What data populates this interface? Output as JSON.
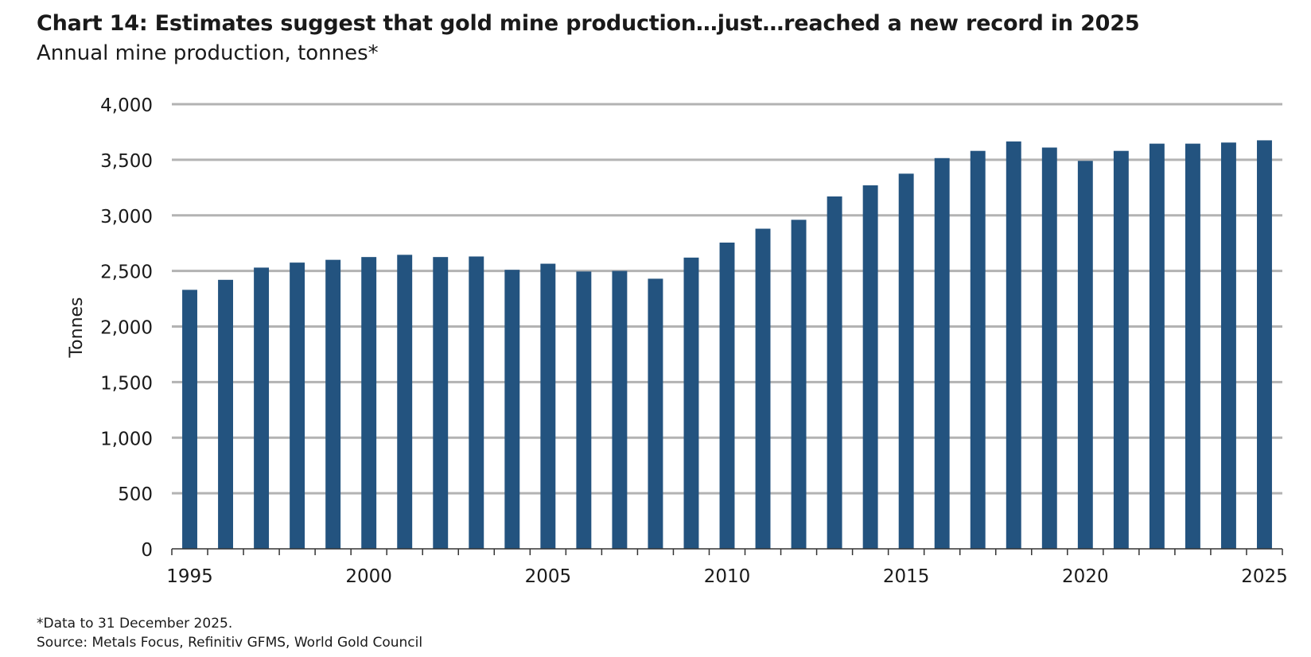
{
  "chart_data": {
    "type": "bar",
    "title": "Chart 14: Estimates suggest that gold mine production…just…reached a new record in 2025",
    "subtitle": "Annual mine production, tonnes*",
    "ylabel": "Tonnes",
    "xlabel": "",
    "ylim": [
      0,
      4000
    ],
    "yticks": [
      0,
      500,
      1000,
      1500,
      2000,
      2500,
      3000,
      3500,
      4000
    ],
    "ytick_labels": [
      "0",
      "500",
      "1,000",
      "1,500",
      "2,000",
      "2,500",
      "3,000",
      "3,500",
      "4,000"
    ],
    "xtick_labels": [
      "1995",
      "2000",
      "2005",
      "2010",
      "2015",
      "2020",
      "2025"
    ],
    "grid": true,
    "legend": "none",
    "bar_color": "#23537f",
    "grid_color": "#b3b3b3",
    "categories": [
      "1995",
      "1996",
      "1997",
      "1998",
      "1999",
      "2000",
      "2001",
      "2002",
      "2003",
      "2004",
      "2005",
      "2006",
      "2007",
      "2008",
      "2009",
      "2010",
      "2011",
      "2012",
      "2013",
      "2014",
      "2015",
      "2016",
      "2017",
      "2018",
      "2019",
      "2020",
      "2021",
      "2022",
      "2023",
      "2024",
      "2025"
    ],
    "values": [
      2330,
      2420,
      2530,
      2575,
      2600,
      2625,
      2645,
      2625,
      2630,
      2510,
      2565,
      2495,
      2500,
      2430,
      2620,
      2755,
      2880,
      2960,
      3170,
      3270,
      3375,
      3515,
      3580,
      3665,
      3610,
      3490,
      3580,
      3645,
      3645,
      3655,
      3675
    ]
  },
  "footnote": "*Data to 31 December 2025.",
  "source": "Source: Metals Focus, Refinitiv GFMS, World Gold Council"
}
